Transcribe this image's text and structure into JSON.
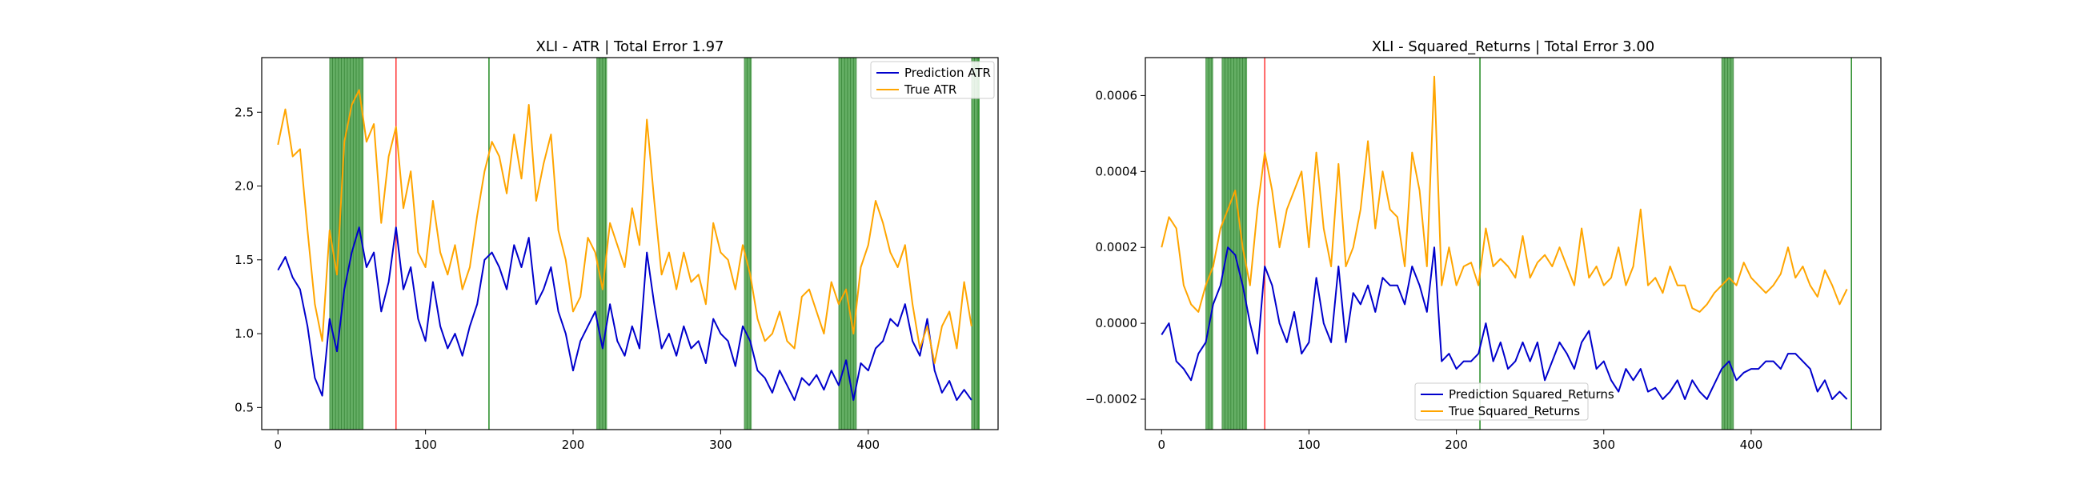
{
  "chart_data": [
    {
      "type": "line",
      "title": "XLI - ATR | Total Error 1.97",
      "xlabel": "",
      "ylabel": "",
      "xlim": [
        -11,
        488
      ],
      "ylim": [
        0.35,
        2.87
      ],
      "xticks": [
        0,
        100,
        200,
        300,
        400
      ],
      "yticks": [
        0.5,
        1.0,
        1.5,
        2.0,
        2.5
      ],
      "grid": false,
      "legend_position": "upper right",
      "series": [
        {
          "name": "Prediction ATR",
          "color": "#0000cc",
          "x": [
            0,
            5,
            10,
            15,
            20,
            25,
            30,
            35,
            40,
            45,
            50,
            55,
            60,
            65,
            70,
            75,
            80,
            85,
            90,
            95,
            100,
            105,
            110,
            115,
            120,
            125,
            130,
            135,
            140,
            145,
            150,
            155,
            160,
            165,
            170,
            175,
            180,
            185,
            190,
            195,
            200,
            205,
            210,
            215,
            220,
            225,
            230,
            235,
            240,
            245,
            250,
            255,
            260,
            265,
            270,
            275,
            280,
            285,
            290,
            295,
            300,
            305,
            310,
            315,
            320,
            325,
            330,
            335,
            340,
            345,
            350,
            355,
            360,
            365,
            370,
            375,
            380,
            385,
            390,
            395,
            400,
            405,
            410,
            415,
            420,
            425,
            430,
            435,
            440,
            445,
            450,
            455,
            460,
            465,
            470
          ],
          "values": [
            1.43,
            1.52,
            1.38,
            1.3,
            1.05,
            0.7,
            0.58,
            1.1,
            0.88,
            1.3,
            1.55,
            1.72,
            1.45,
            1.55,
            1.15,
            1.35,
            1.72,
            1.3,
            1.45,
            1.1,
            0.95,
            1.35,
            1.05,
            0.9,
            1.0,
            0.85,
            1.05,
            1.2,
            1.5,
            1.55,
            1.45,
            1.3,
            1.6,
            1.45,
            1.65,
            1.2,
            1.3,
            1.45,
            1.15,
            1.0,
            0.75,
            0.95,
            1.05,
            1.15,
            0.9,
            1.2,
            0.95,
            0.85,
            1.05,
            0.9,
            1.55,
            1.2,
            0.9,
            1.0,
            0.85,
            1.05,
            0.9,
            0.95,
            0.8,
            1.1,
            1.0,
            0.95,
            0.78,
            1.05,
            0.95,
            0.75,
            0.7,
            0.6,
            0.75,
            0.65,
            0.55,
            0.7,
            0.65,
            0.72,
            0.62,
            0.75,
            0.65,
            0.82,
            0.55,
            0.8,
            0.75,
            0.9,
            0.95,
            1.1,
            1.05,
            1.2,
            0.95,
            0.85,
            1.1,
            0.75,
            0.6,
            0.68,
            0.55,
            0.62,
            0.55
          ]
        },
        {
          "name": "True ATR",
          "color": "#ffa500",
          "x": [
            0,
            5,
            10,
            15,
            20,
            25,
            30,
            35,
            40,
            45,
            50,
            55,
            60,
            65,
            70,
            75,
            80,
            85,
            90,
            95,
            100,
            105,
            110,
            115,
            120,
            125,
            130,
            135,
            140,
            145,
            150,
            155,
            160,
            165,
            170,
            175,
            180,
            185,
            190,
            195,
            200,
            205,
            210,
            215,
            220,
            225,
            230,
            235,
            240,
            245,
            250,
            255,
            260,
            265,
            270,
            275,
            280,
            285,
            290,
            295,
            300,
            305,
            310,
            315,
            320,
            325,
            330,
            335,
            340,
            345,
            350,
            355,
            360,
            365,
            370,
            375,
            380,
            385,
            390,
            395,
            400,
            405,
            410,
            415,
            420,
            425,
            430,
            435,
            440,
            445,
            450,
            455,
            460,
            465,
            470
          ],
          "values": [
            2.28,
            2.52,
            2.2,
            2.25,
            1.7,
            1.2,
            0.95,
            1.7,
            1.4,
            2.3,
            2.55,
            2.65,
            2.3,
            2.42,
            1.75,
            2.2,
            2.4,
            1.85,
            2.1,
            1.55,
            1.45,
            1.9,
            1.55,
            1.4,
            1.6,
            1.3,
            1.45,
            1.8,
            2.1,
            2.3,
            2.2,
            1.95,
            2.35,
            2.05,
            2.55,
            1.9,
            2.15,
            2.35,
            1.7,
            1.5,
            1.15,
            1.25,
            1.65,
            1.55,
            1.3,
            1.75,
            1.6,
            1.45,
            1.85,
            1.6,
            2.45,
            1.9,
            1.4,
            1.55,
            1.3,
            1.55,
            1.35,
            1.4,
            1.2,
            1.75,
            1.55,
            1.5,
            1.3,
            1.6,
            1.4,
            1.1,
            0.95,
            1.0,
            1.15,
            0.95,
            0.9,
            1.25,
            1.3,
            1.15,
            1.0,
            1.35,
            1.2,
            1.3,
            1.0,
            1.45,
            1.6,
            1.9,
            1.75,
            1.55,
            1.45,
            1.6,
            1.2,
            0.9,
            1.05,
            0.8,
            1.05,
            1.15,
            0.9,
            1.35,
            1.05
          ]
        }
      ],
      "highlight_bands": [
        [
          35,
          58
        ],
        [
          216,
          223
        ],
        [
          316,
          321
        ],
        [
          380,
          392
        ],
        [
          470,
          475
        ]
      ],
      "highlight_color": "#228b22",
      "vlines": [
        {
          "x": 80,
          "color": "#ff3333"
        },
        {
          "x": 143,
          "color": "#228b22"
        },
        {
          "x": 475,
          "color": "#228b22"
        }
      ]
    },
    {
      "type": "line",
      "title": "XLI - Squared_Returns | Total Error 3.00",
      "xlabel": "",
      "ylabel": "",
      "xlim": [
        -11,
        488
      ],
      "ylim": [
        -0.00028,
        0.0007
      ],
      "xticks": [
        0,
        100,
        200,
        300,
        400
      ],
      "yticks": [
        -0.0002,
        0.0,
        0.0002,
        0.0004,
        0.0006
      ],
      "ytick_labels": [
        "−0.0002",
        "0.0000",
        "0.0002",
        "0.0004",
        "0.0006"
      ],
      "grid": false,
      "legend_position": "lower center",
      "series": [
        {
          "name": "Prediction Squared_Returns",
          "color": "#0000cc",
          "x": [
            0,
            5,
            10,
            15,
            20,
            25,
            30,
            35,
            40,
            45,
            50,
            55,
            60,
            65,
            70,
            75,
            80,
            85,
            90,
            95,
            100,
            105,
            110,
            115,
            120,
            125,
            130,
            135,
            140,
            145,
            150,
            155,
            160,
            165,
            170,
            175,
            180,
            185,
            190,
            195,
            200,
            205,
            210,
            215,
            220,
            225,
            230,
            235,
            240,
            245,
            250,
            255,
            260,
            265,
            270,
            275,
            280,
            285,
            290,
            295,
            300,
            305,
            310,
            315,
            320,
            325,
            330,
            335,
            340,
            345,
            350,
            355,
            360,
            365,
            370,
            375,
            380,
            385,
            390,
            395,
            400,
            405,
            410,
            415,
            420,
            425,
            430,
            435,
            440,
            445,
            450,
            455,
            460,
            465
          ],
          "values": [
            -3e-05,
            0.0,
            -0.0001,
            -0.00012,
            -0.00015,
            -8e-05,
            -5e-05,
            5e-05,
            0.0001,
            0.0002,
            0.00018,
            0.0001,
            0.0,
            -8e-05,
            0.00015,
            0.0001,
            0.0,
            -5e-05,
            3e-05,
            -8e-05,
            -5e-05,
            0.00012,
            0.0,
            -5e-05,
            0.00015,
            -5e-05,
            8e-05,
            5e-05,
            0.0001,
            3e-05,
            0.00012,
            0.0001,
            0.0001,
            5e-05,
            0.00015,
            0.0001,
            3e-05,
            0.0002,
            -0.0001,
            -8e-05,
            -0.00012,
            -0.0001,
            -0.0001,
            -8e-05,
            0.0,
            -0.0001,
            -5e-05,
            -0.00012,
            -0.0001,
            -5e-05,
            -0.0001,
            -5e-05,
            -0.00015,
            -0.0001,
            -5e-05,
            -8e-05,
            -0.00012,
            -5e-05,
            -2e-05,
            -0.00012,
            -0.0001,
            -0.00015,
            -0.00018,
            -0.00012,
            -0.00015,
            -0.00012,
            -0.00018,
            -0.00017,
            -0.0002,
            -0.00018,
            -0.00015,
            -0.0002,
            -0.00015,
            -0.00018,
            -0.0002,
            -0.00016,
            -0.00012,
            -0.0001,
            -0.00015,
            -0.00013,
            -0.00012,
            -0.00012,
            -0.0001,
            -0.0001,
            -0.00012,
            -8e-05,
            -8e-05,
            -0.0001,
            -0.00012,
            -0.00018,
            -0.00015,
            -0.0002,
            -0.00018,
            -0.0002
          ]
        },
        {
          "name": "True Squared_Returns",
          "color": "#ffa500",
          "x": [
            0,
            5,
            10,
            15,
            20,
            25,
            30,
            35,
            40,
            45,
            50,
            55,
            60,
            65,
            70,
            75,
            80,
            85,
            90,
            95,
            100,
            105,
            110,
            115,
            120,
            125,
            130,
            135,
            140,
            145,
            150,
            155,
            160,
            165,
            170,
            175,
            180,
            185,
            190,
            195,
            200,
            205,
            210,
            215,
            220,
            225,
            230,
            235,
            240,
            245,
            250,
            255,
            260,
            265,
            270,
            275,
            280,
            285,
            290,
            295,
            300,
            305,
            310,
            315,
            320,
            325,
            330,
            335,
            340,
            345,
            350,
            355,
            360,
            365,
            370,
            375,
            380,
            385,
            390,
            395,
            400,
            405,
            410,
            415,
            420,
            425,
            430,
            435,
            440,
            445,
            450,
            455,
            460,
            465
          ],
          "values": [
            0.0002,
            0.00028,
            0.00025,
            0.0001,
            5e-05,
            3e-05,
            0.0001,
            0.00015,
            0.00025,
            0.0003,
            0.00035,
            0.0002,
            0.0001,
            0.0003,
            0.00045,
            0.00035,
            0.0002,
            0.0003,
            0.00035,
            0.0004,
            0.0002,
            0.00045,
            0.00025,
            0.00015,
            0.00042,
            0.00015,
            0.0002,
            0.0003,
            0.00048,
            0.00025,
            0.0004,
            0.0003,
            0.00028,
            0.00015,
            0.00045,
            0.00035,
            0.00015,
            0.00065,
            0.0001,
            0.0002,
            0.0001,
            0.00015,
            0.00016,
            0.0001,
            0.00025,
            0.00015,
            0.00017,
            0.00015,
            0.00012,
            0.00023,
            0.00012,
            0.00016,
            0.00018,
            0.00015,
            0.0002,
            0.00015,
            0.0001,
            0.00025,
            0.00012,
            0.00015,
            0.0001,
            0.00012,
            0.0002,
            0.0001,
            0.00015,
            0.0003,
            0.0001,
            0.00012,
            8e-05,
            0.00015,
            0.0001,
            0.0001,
            4e-05,
            3e-05,
            5e-05,
            8e-05,
            0.0001,
            0.00012,
            0.0001,
            0.00016,
            0.00012,
            0.0001,
            8e-05,
            0.0001,
            0.00013,
            0.0002,
            0.00012,
            0.00015,
            0.0001,
            7e-05,
            0.00014,
            0.0001,
            5e-05,
            9e-05
          ]
        }
      ],
      "highlight_bands": [
        [
          30,
          35
        ],
        [
          41,
          58
        ],
        [
          380,
          388
        ]
      ],
      "highlight_color": "#228b22",
      "vlines": [
        {
          "x": 70,
          "color": "#ff3333"
        },
        {
          "x": 216,
          "color": "#228b22"
        },
        {
          "x": 468,
          "color": "#228b22"
        }
      ]
    }
  ]
}
